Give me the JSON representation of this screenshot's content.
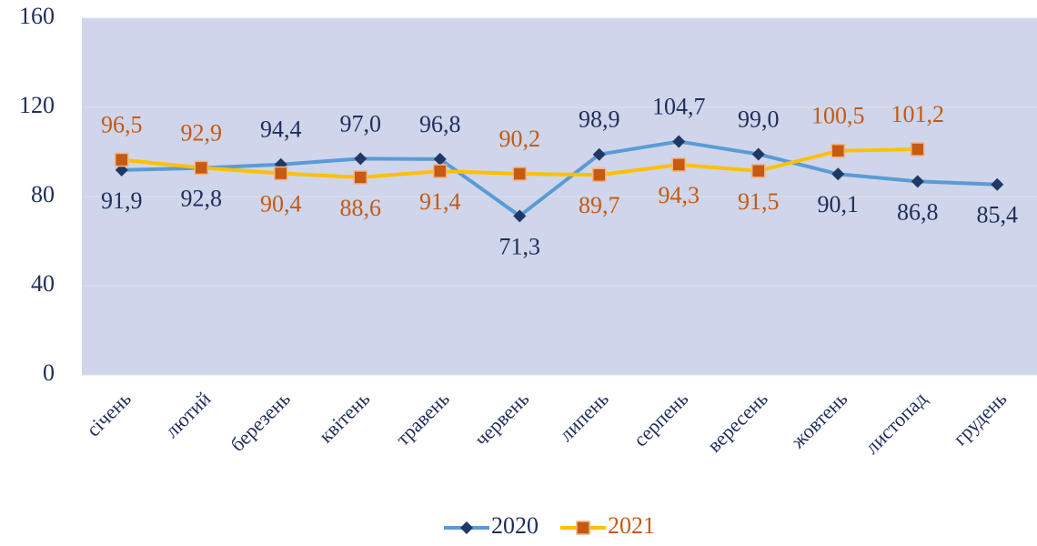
{
  "chart_data": {
    "type": "line",
    "categories": [
      "січень",
      "лютий",
      "березень",
      "квітень",
      "травень",
      "червень",
      "липень",
      "серпень",
      "вересень",
      "жовтень",
      "листопад",
      "грудень"
    ],
    "series": [
      {
        "name": "2020",
        "color": "#5b9bd5",
        "marker_color": "#1f3864",
        "label_color": "#1f2d5a",
        "values": [
          91.9,
          92.8,
          94.4,
          97.0,
          96.8,
          71.3,
          98.9,
          104.7,
          99.0,
          90.1,
          86.8,
          85.4
        ],
        "value_labels": [
          "91,9",
          "92,8",
          "94,4",
          "97,0",
          "96,8",
          "71,3",
          "98,9",
          "104,7",
          "99,0",
          "90,1",
          "86,8",
          "85,4"
        ]
      },
      {
        "name": "2021",
        "color": "#ffc000",
        "marker_color": "#c55a11",
        "label_color": "#c55a11",
        "values": [
          96.5,
          92.9,
          90.4,
          88.6,
          91.4,
          90.2,
          89.7,
          94.3,
          91.5,
          100.5,
          101.2,
          null
        ],
        "value_labels": [
          "96,5",
          "92,9",
          "90,4",
          "88,6",
          "91,4",
          "90,2",
          "89,7",
          "94,3",
          "91,5",
          "100,5",
          "101,2",
          null
        ]
      }
    ],
    "ylim": [
      0,
      160
    ],
    "yticks": [
      0,
      40,
      80,
      120,
      160
    ],
    "grid": true,
    "legend": "bottom"
  }
}
